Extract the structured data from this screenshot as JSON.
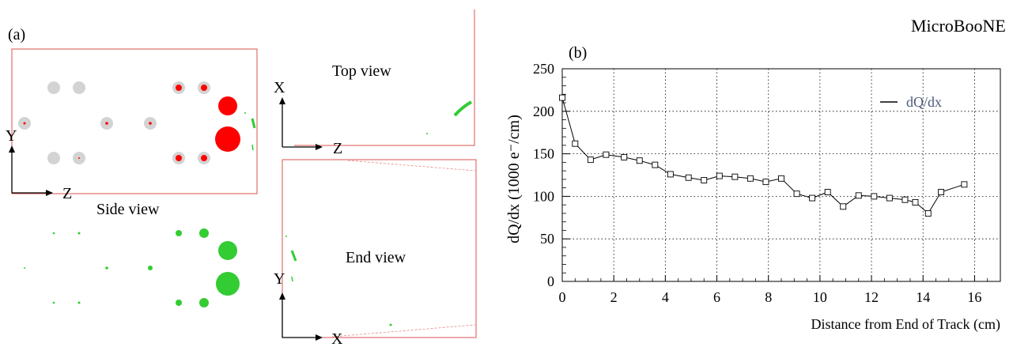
{
  "figure": {
    "experiment_label": "MicroBooNE",
    "panel_a_label": "(a)",
    "panel_b_label": "(b)",
    "side_view": {
      "title": "Side view",
      "axis_y": "Y",
      "axis_x": "Z"
    },
    "top_view": {
      "title": "Top view",
      "axis_y": "X",
      "axis_x": "Z"
    },
    "end_view": {
      "title": "End view",
      "axis_y": "Y",
      "axis_x": "X"
    },
    "colors": {
      "red": "#ff0000",
      "green": "#33cc33",
      "grey": "#d3d3d3",
      "frame": "#d9534f",
      "legend_text": "#4a5a7a"
    }
  },
  "chart_data": {
    "type": "line",
    "title": "",
    "xlabel": "Distance from End of Track (cm)",
    "ylabel": "dQ/dx (1000 e⁻/cm)",
    "xlim": [
      0,
      17
    ],
    "ylim": [
      0,
      250
    ],
    "xticks": [
      0,
      2,
      4,
      6,
      8,
      10,
      12,
      14,
      16
    ],
    "yticks": [
      0,
      50,
      100,
      150,
      200,
      250
    ],
    "grid": true,
    "legend": {
      "placement": "top-right",
      "entries": [
        "dQ/dx"
      ]
    },
    "series": [
      {
        "name": "dQ/dx",
        "marker": "open-square",
        "x": [
          0.0,
          0.5,
          1.1,
          1.7,
          2.4,
          3.0,
          3.6,
          4.2,
          4.9,
          5.5,
          6.1,
          6.7,
          7.3,
          7.9,
          8.5,
          9.1,
          9.7,
          10.3,
          10.9,
          11.5,
          12.1,
          12.7,
          13.3,
          13.7,
          14.2,
          14.7,
          15.6
        ],
        "y": [
          216,
          162,
          143,
          149,
          146,
          142,
          137,
          126,
          122,
          119,
          124,
          123,
          121,
          117,
          121,
          103,
          98,
          105,
          88,
          101,
          100,
          98,
          96,
          93,
          80,
          105,
          114
        ]
      }
    ]
  }
}
